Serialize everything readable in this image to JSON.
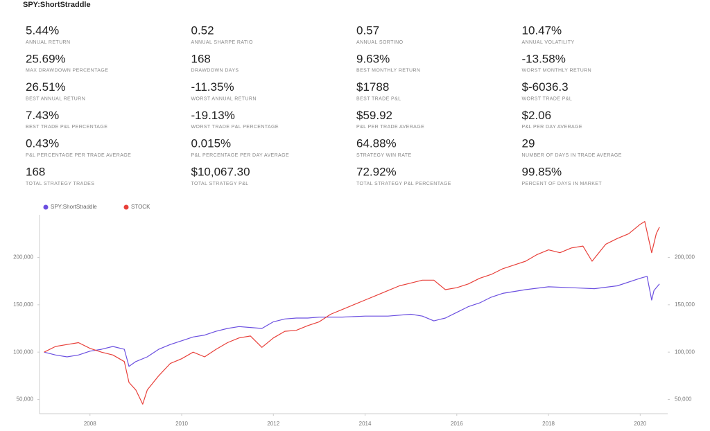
{
  "header": {
    "title": "SPY:ShortStraddle"
  },
  "stats": [
    {
      "value": "5.44%",
      "label": "ANNUAL RETURN"
    },
    {
      "value": "0.52",
      "label": "ANNUAL SHARPE RATIO"
    },
    {
      "value": "0.57",
      "label": "ANNUAL SORTINO"
    },
    {
      "value": "10.47%",
      "label": "ANNUAL VOLATILITY"
    },
    {
      "value": "25.69%",
      "label": "MAX DRAWDOWN PERCENTAGE"
    },
    {
      "value": "168",
      "label": "DRAWDOWN DAYS"
    },
    {
      "value": "9.63%",
      "label": "BEST MONTHLY RETURN"
    },
    {
      "value": "-13.58%",
      "label": "WORST MONTHLY RETURN"
    },
    {
      "value": "26.51%",
      "label": "BEST ANNUAL RETURN"
    },
    {
      "value": "-11.35%",
      "label": "WORST ANNUAL RETURN"
    },
    {
      "value": "$1788",
      "label": "BEST TRADE P&L"
    },
    {
      "value": "$-6036.3",
      "label": "WORST TRADE P&L"
    },
    {
      "value": "7.43%",
      "label": "BEST TRADE P&L PERCENTAGE"
    },
    {
      "value": "-19.13%",
      "label": "WORST TRADE P&L PERCENTAGE"
    },
    {
      "value": "$59.92",
      "label": "P&L PER TRADE AVERAGE"
    },
    {
      "value": "$2.06",
      "label": "P&L PER DAY AVERAGE"
    },
    {
      "value": "0.43%",
      "label": "P&L PERCENTAGE PER TRADE AVERAGE"
    },
    {
      "value": "0.015%",
      "label": "P&L PERCENTAGE PER DAY AVERAGE"
    },
    {
      "value": "64.88%",
      "label": "STRATEGY WIN RATE"
    },
    {
      "value": "29",
      "label": "NUMBER OF DAYS IN TRADE AVERAGE"
    },
    {
      "value": "168",
      "label": "TOTAL STRATEGY TRADES"
    },
    {
      "value": "$10,067.30",
      "label": "TOTAL STRATEGY P&L"
    },
    {
      "value": "72.92%",
      "label": "TOTAL STRATEGY P&L PERCENTAGE"
    },
    {
      "value": "99.85%",
      "label": "PERCENT OF DAYS IN MARKET"
    }
  ],
  "chart_data": {
    "type": "line",
    "grid": false,
    "legend": "top-left",
    "xlim": [
      2006.9,
      2020.6
    ],
    "xticks": [
      2008,
      2010,
      2012,
      2014,
      2016,
      2018,
      2020
    ],
    "ylim": [
      35000,
      245000
    ],
    "yticks": [
      {
        "value": 50000,
        "label": "50,000"
      },
      {
        "value": 100000,
        "label": "100,000"
      },
      {
        "value": 150000,
        "label": "150,000"
      },
      {
        "value": 200000,
        "label": "200,000"
      }
    ],
    "y2lim": [
      35000,
      245000
    ],
    "y2ticks": [
      {
        "value": 50000,
        "label": "50,000"
      },
      {
        "value": 100000,
        "label": "100,000"
      },
      {
        "value": 150000,
        "label": "150,000"
      },
      {
        "value": 200000,
        "label": "200,000"
      }
    ],
    "series": [
      {
        "name": "SPY:ShortStraddle",
        "color": "#6b4fe0",
        "x": [
          2007.0,
          2007.25,
          2007.5,
          2007.75,
          2008.0,
          2008.25,
          2008.5,
          2008.75,
          2008.85,
          2009.0,
          2009.25,
          2009.5,
          2009.75,
          2010.0,
          2010.25,
          2010.5,
          2010.75,
          2011.0,
          2011.25,
          2011.5,
          2011.75,
          2012.0,
          2012.25,
          2012.5,
          2012.75,
          2013.0,
          2013.5,
          2014.0,
          2014.5,
          2015.0,
          2015.25,
          2015.5,
          2015.75,
          2016.0,
          2016.25,
          2016.5,
          2016.75,
          2017.0,
          2017.5,
          2018.0,
          2018.5,
          2019.0,
          2019.5,
          2020.0,
          2020.15,
          2020.25,
          2020.3,
          2020.42
        ],
        "values": [
          100000,
          97000,
          95000,
          97000,
          101000,
          103000,
          106000,
          103000,
          85000,
          90000,
          95000,
          103000,
          108000,
          112000,
          116000,
          118000,
          122000,
          125000,
          127000,
          126000,
          125000,
          132000,
          135000,
          136000,
          136000,
          137000,
          137000,
          138000,
          138000,
          140000,
          138000,
          133000,
          136000,
          142000,
          148000,
          152000,
          158000,
          162000,
          166000,
          169000,
          168000,
          167000,
          170000,
          178000,
          180000,
          155000,
          165000,
          172000
        ]
      },
      {
        "name": "STOCK",
        "color": "#e8403a",
        "x": [
          2007.0,
          2007.25,
          2007.5,
          2007.75,
          2008.0,
          2008.25,
          2008.5,
          2008.75,
          2008.85,
          2009.0,
          2009.15,
          2009.25,
          2009.5,
          2009.75,
          2010.0,
          2010.25,
          2010.5,
          2010.75,
          2011.0,
          2011.25,
          2011.5,
          2011.75,
          2012.0,
          2012.25,
          2012.5,
          2012.75,
          2013.0,
          2013.25,
          2013.5,
          2013.75,
          2014.0,
          2014.25,
          2014.5,
          2014.75,
          2015.0,
          2015.25,
          2015.5,
          2015.75,
          2016.0,
          2016.25,
          2016.5,
          2016.75,
          2017.0,
          2017.25,
          2017.5,
          2017.75,
          2018.0,
          2018.25,
          2018.5,
          2018.75,
          2018.95,
          2019.25,
          2019.5,
          2019.75,
          2020.0,
          2020.1,
          2020.25,
          2020.35,
          2020.42
        ],
        "values": [
          100000,
          106000,
          108000,
          110000,
          104000,
          100000,
          97000,
          90000,
          68000,
          60000,
          45000,
          60000,
          75000,
          88000,
          93000,
          100000,
          95000,
          103000,
          110000,
          115000,
          117000,
          105000,
          115000,
          122000,
          123000,
          128000,
          132000,
          140000,
          145000,
          150000,
          155000,
          160000,
          165000,
          170000,
          173000,
          176000,
          176000,
          166000,
          168000,
          172000,
          178000,
          182000,
          188000,
          192000,
          196000,
          203000,
          208000,
          205000,
          210000,
          212000,
          196000,
          214000,
          220000,
          225000,
          235000,
          238000,
          205000,
          225000,
          232000
        ]
      }
    ]
  }
}
